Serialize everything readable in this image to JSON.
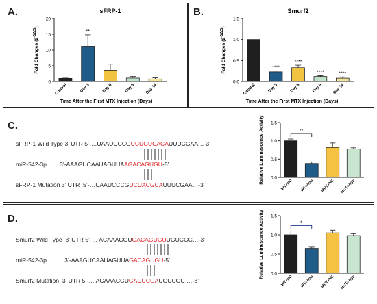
{
  "panels": {
    "A": {
      "label": "A."
    },
    "B": {
      "label": "B."
    },
    "C": {
      "label": "C."
    },
    "D": {
      "label": "D."
    }
  },
  "colors": {
    "control": "#1f1f1f",
    "day3": "#1f5c8a",
    "day6": "#f2c341",
    "day9": "#bfe3c9",
    "day14": "#f4e39a",
    "wtnc": "#1f1f1f",
    "wtago": "#1f5c8a",
    "mutnc": "#f5c242",
    "mutago": "#c8e6cf",
    "red": "#e02020"
  },
  "seqC": {
    "wt": {
      "prefix": "sFRP-1 Wild Type 3’ UTR 5’-…UAAUCCCG",
      "site": "UCUGUCACA",
      "suffix": "UUUCGAA…-3’"
    },
    "mir": {
      "prefix": "miR-542-3p        3’-AAAGUCAAUAGUUA",
      "site": "AGACAGUGU",
      "suffix": "-5’"
    },
    "mut": {
      "prefix": "sFRP-1 Mutation 3’ UTR  5’-…UAAUCCCG",
      "site": "UCUACGCA",
      "suffix": "UUUCGAA…-3’"
    }
  },
  "seqD": {
    "wt": {
      "prefix": "Smurf2 Wild Type  3’ UTR 5’-… ACAAACGU",
      "site": "GACAGUGU",
      "suffix": "UGUCGC…-3’"
    },
    "mir": {
      "prefix": "miR-542-3p           3’-AAAGUCAAUAGUUA",
      "site": "GACAGUGU",
      "suffix": "-5’"
    },
    "mut": {
      "prefix": "Smurf2 Mutation  3’ UTR 5’-… ACAAACGU",
      "site": "GACUCGA",
      "suffix": "UGUCGC …-3’"
    }
  },
  "chart_data": [
    {
      "type": "bar",
      "title": "sFRP-1",
      "xlabel": "Time After the First MTX Injection (Days)",
      "ylabel": "Fold Changes (2^-ΔΔCt)",
      "categories": [
        "Control",
        "Day 3",
        "Day 6",
        "Day 9",
        "Day 14"
      ],
      "values": [
        1.0,
        11.2,
        3.6,
        1.1,
        0.8
      ],
      "errors": [
        0.1,
        3.6,
        1.9,
        0.5,
        0.4
      ],
      "significance": [
        "",
        "**",
        "",
        "",
        ""
      ],
      "ylim": [
        0,
        20
      ],
      "yticks": [
        "0",
        "5",
        "10",
        "15",
        "20"
      ]
    },
    {
      "type": "bar",
      "title": "Smurf2",
      "xlabel": "Time After the First MTX Injection (Days)",
      "ylabel": "Fold Changes (2^-ΔΔCt)",
      "categories": [
        "Control",
        "Day 3",
        "Day 6",
        "Day 9",
        "Day 14"
      ],
      "values": [
        1.0,
        0.23,
        0.33,
        0.12,
        0.08
      ],
      "errors": [
        0.0,
        0.02,
        0.06,
        0.02,
        0.03
      ],
      "significance": [
        "",
        "****",
        "****",
        "****",
        "****"
      ],
      "ylim": [
        0,
        1.5
      ],
      "yticks": [
        "0.0",
        "0.5",
        "1.0",
        "1.5"
      ]
    },
    {
      "type": "bar",
      "ylabel": "Relative Luminescence Activity",
      "categories": [
        "WT+NC",
        "WT+Ago",
        "MUT+NC",
        "MUT+Ago"
      ],
      "values": [
        1.0,
        0.38,
        0.82,
        0.78
      ],
      "errors": [
        0.05,
        0.04,
        0.12,
        0.03
      ],
      "significance": [
        {
          "from": 0,
          "to": 1,
          "text": "**"
        }
      ],
      "ylim": [
        0,
        1.5
      ],
      "yticks": [
        "0.0",
        "0.5",
        "1.0",
        "1.5"
      ]
    },
    {
      "type": "bar",
      "ylabel": "Relative Luminescence Activity",
      "categories": [
        "WT+NC",
        "WT+Ago",
        "MUT+NC",
        "MUT+Ago"
      ],
      "values": [
        1.0,
        0.65,
        1.05,
        0.98
      ],
      "errors": [
        0.1,
        0.03,
        0.07,
        0.05
      ],
      "significance": [
        {
          "from": 0,
          "to": 1,
          "text": "*"
        }
      ],
      "ylim": [
        0,
        1.5
      ],
      "yticks": [
        "0.0",
        "0.5",
        "1.0",
        "1.5"
      ]
    }
  ]
}
